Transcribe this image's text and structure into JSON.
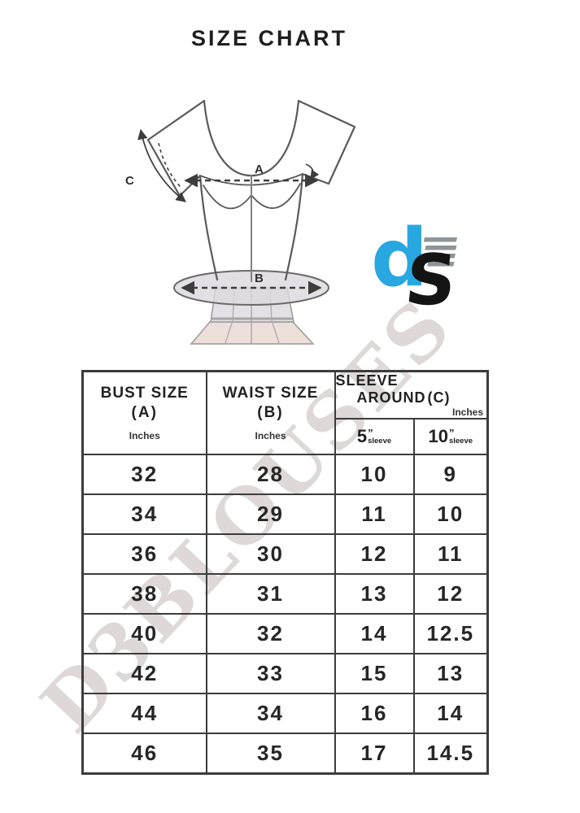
{
  "page": {
    "title": "SIZE CHART",
    "background": "#ffffff"
  },
  "watermark": {
    "text": "D3BLOUSES"
  },
  "diagram": {
    "bust_label": "A",
    "waist_label": "B",
    "sleeve_label": "C"
  },
  "logo": {
    "top_letter": "d",
    "bottom_letter": "S",
    "blue": "#28a7e0",
    "black": "#141414",
    "stripe_gray": "#8e949a"
  },
  "chart_data": {
    "type": "table",
    "title": "SIZE CHART",
    "columns": [
      {
        "label": "BUST SIZE",
        "code": "(A)",
        "unit": "Inches"
      },
      {
        "label": "WAIST SIZE",
        "code": "(B)",
        "unit": "Inches"
      },
      {
        "line1": "SLEEVE",
        "line2": "AROUND",
        "code": "(C)",
        "unit": "Inches",
        "subcolumns": [
          {
            "size": "5",
            "inch_mark": "”",
            "caption": "sleeve"
          },
          {
            "size": "10",
            "inch_mark": "”",
            "caption": "sleeve"
          }
        ]
      }
    ],
    "rows": [
      [
        "32",
        "28",
        "10",
        "9"
      ],
      [
        "34",
        "29",
        "11",
        "10"
      ],
      [
        "36",
        "30",
        "12",
        "11"
      ],
      [
        "38",
        "31",
        "13",
        "12"
      ],
      [
        "40",
        "32",
        "14",
        "12.5"
      ],
      [
        "42",
        "33",
        "15",
        "13"
      ],
      [
        "44",
        "34",
        "16",
        "14"
      ],
      [
        "46",
        "35",
        "17",
        "14.5"
      ]
    ]
  }
}
